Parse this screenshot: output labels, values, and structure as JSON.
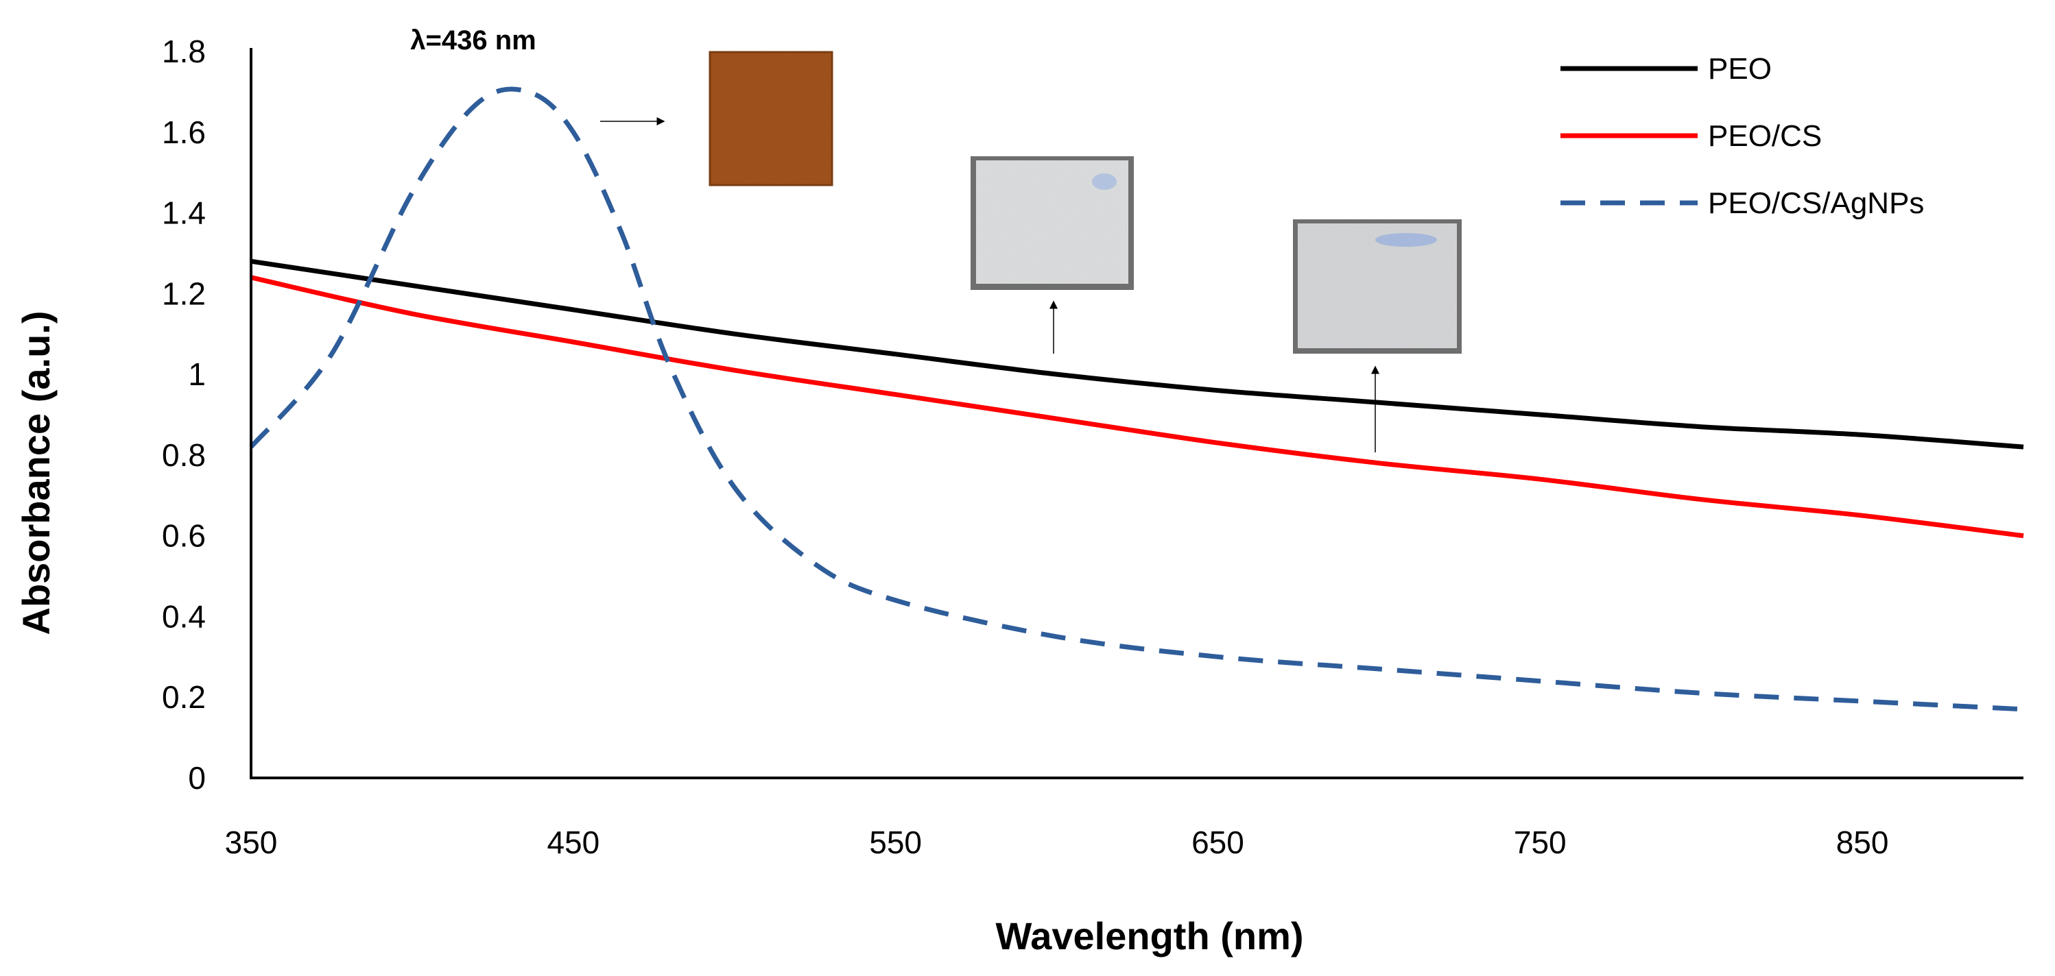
{
  "chart_data": {
    "type": "line",
    "title": "",
    "xlabel": "Wavelength (nm)",
    "ylabel": "Absorbance (a.u.)",
    "xlim": [
      350,
      900
    ],
    "ylim": [
      0,
      1.8
    ],
    "xticks": [
      350,
      450,
      550,
      650,
      750,
      850
    ],
    "yticks": [
      0,
      0.2,
      0.4,
      0.6,
      0.8,
      1,
      1.2,
      1.4,
      1.6,
      1.8
    ],
    "ytick_labels": [
      "0",
      "0.2",
      "0.4",
      "0.6",
      "0.8",
      "1",
      "1.2",
      "1.4",
      "1.6",
      "1.8"
    ],
    "grid": false,
    "legend_position": "top-right",
    "series": [
      {
        "name": "PEO",
        "color": "#000000",
        "dash": "solid",
        "x": [
          350,
          400,
          450,
          500,
          550,
          600,
          650,
          700,
          750,
          800,
          850,
          900
        ],
        "y": [
          1.28,
          1.22,
          1.16,
          1.1,
          1.05,
          1.0,
          0.96,
          0.93,
          0.9,
          0.87,
          0.85,
          0.82
        ]
      },
      {
        "name": "PEO/CS",
        "color": "#ff0000",
        "dash": "solid",
        "x": [
          350,
          400,
          450,
          500,
          550,
          600,
          650,
          700,
          750,
          800,
          850,
          900
        ],
        "y": [
          1.24,
          1.15,
          1.08,
          1.01,
          0.95,
          0.89,
          0.83,
          0.78,
          0.74,
          0.69,
          0.65,
          0.6
        ]
      },
      {
        "name": "PEO/CS/AgNPs",
        "color": "#2e5d9a",
        "dash": "dashed",
        "x": [
          350,
          375,
          400,
          420,
          436,
          450,
          465,
          480,
          500,
          525,
          550,
          600,
          650,
          700,
          750,
          800,
          850,
          900
        ],
        "y": [
          0.82,
          1.05,
          1.45,
          1.67,
          1.7,
          1.6,
          1.35,
          1.02,
          0.72,
          0.53,
          0.44,
          0.35,
          0.3,
          0.27,
          0.24,
          0.21,
          0.19,
          0.17
        ]
      }
    ],
    "annotations": [
      {
        "text": "λ=436 nm"
      }
    ],
    "inset_images": [
      {
        "name": "PEO/CS/AgNPs film",
        "color": "#a1521c"
      },
      {
        "name": "PEO film",
        "color": "#dcdedf"
      },
      {
        "name": "PEO/CS film",
        "color": "#d4d6d8"
      }
    ]
  }
}
